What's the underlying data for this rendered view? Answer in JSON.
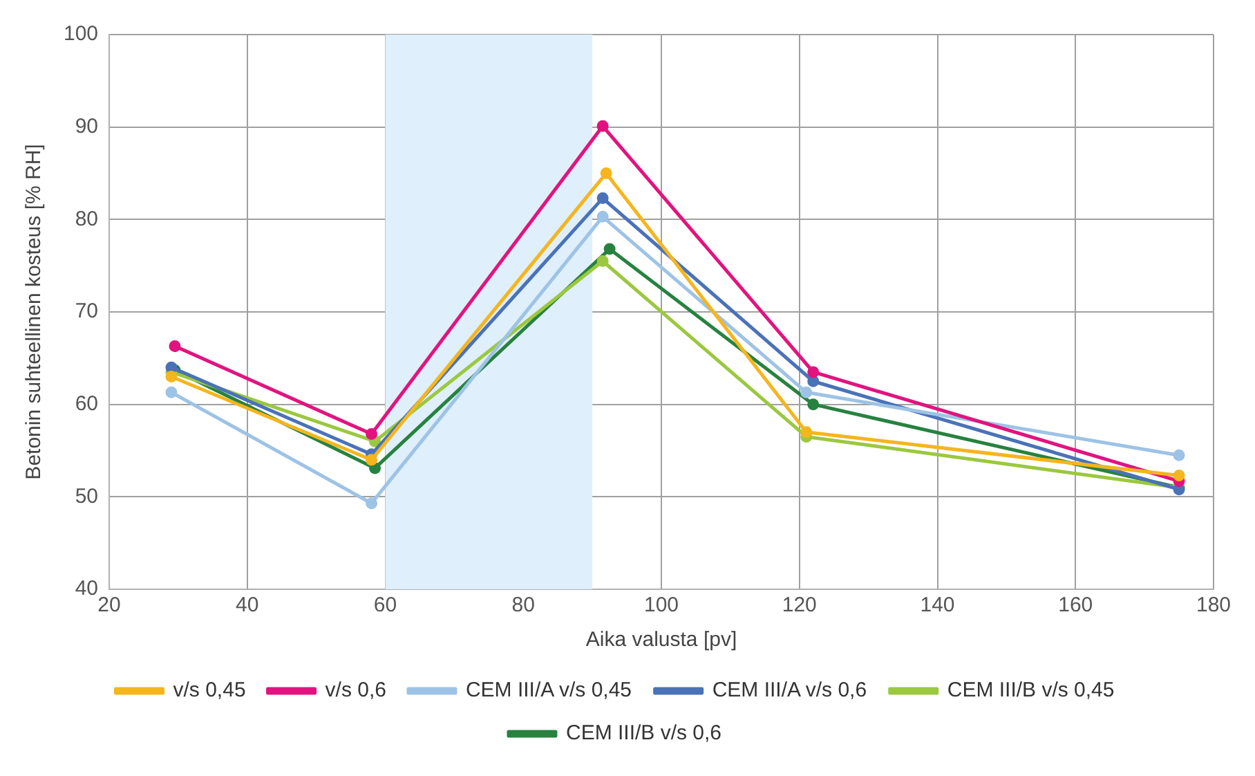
{
  "chart_data": {
    "type": "line",
    "xlabel": "Aika valusta [pv]",
    "ylabel": "Betonin suhteellinen kosteus [% RH]",
    "xlim": [
      20,
      180
    ],
    "xticks": [
      20,
      40,
      60,
      80,
      100,
      120,
      140,
      160,
      180
    ],
    "ylim": [
      40,
      100
    ],
    "yticks": [
      40,
      50,
      60,
      70,
      80,
      90,
      100
    ],
    "grid": true,
    "legend": "bottom",
    "marker": "circle",
    "line_style": "solid",
    "bands": [
      {
        "axis": "x",
        "from": 60,
        "to": 90,
        "color": "#dfeffb"
      }
    ],
    "series": [
      {
        "name": "v/s 0,45",
        "color": "#f5b51d",
        "x": [
          29,
          58,
          92,
          121,
          175
        ],
        "values": [
          63,
          54,
          85,
          57,
          52.3
        ]
      },
      {
        "name": "v/s 0,6",
        "color": "#e2137f",
        "x": [
          29.5,
          58,
          91.5,
          122,
          175
        ],
        "values": [
          66.3,
          56.8,
          90.1,
          63.5,
          51.7
        ]
      },
      {
        "name": "CEM III/A v/s 0,45",
        "color": "#9dc3e6",
        "x": [
          29,
          58,
          91.5,
          121,
          175
        ],
        "values": [
          61.3,
          49.3,
          80.3,
          61.3,
          54.5
        ]
      },
      {
        "name": "CEM III/A v/s 0,6",
        "color": "#4a72b8",
        "x": [
          29,
          58,
          91.5,
          122,
          175
        ],
        "values": [
          64,
          54.6,
          82.3,
          62.5,
          50.8
        ]
      },
      {
        "name": "CEM III/B v/s 0,45",
        "color": "#9bc83f",
        "x": [
          29,
          58.5,
          91.5,
          121,
          175
        ],
        "values": [
          63.5,
          56,
          75.5,
          56.5,
          51
        ]
      },
      {
        "name": "CEM III/B v/s 0,6",
        "color": "#27823f",
        "x": [
          29.5,
          58.5,
          92.5,
          122,
          175
        ],
        "values": [
          63.7,
          53.1,
          76.8,
          60,
          51
        ]
      }
    ]
  }
}
